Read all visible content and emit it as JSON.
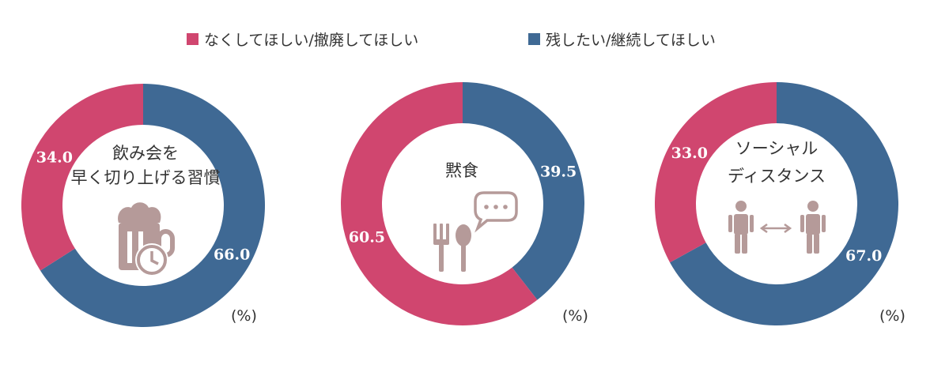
{
  "chart_data": {
    "type": "pie",
    "series_names": [
      "なくしてほしい/撤廃してほしい",
      "残したい/継続してほしい"
    ],
    "colors": [
      "#d0466f",
      "#3f6994"
    ],
    "unit": "(%)",
    "charts": [
      {
        "label_lines": [
          "飲み会を",
          "早く切り上げる習慣"
        ],
        "icon": "beer-mug-clock-icon",
        "values": [
          34.0,
          66.0
        ],
        "value_labels": [
          "34.0",
          "66.0"
        ]
      },
      {
        "label_lines": [
          "黙食"
        ],
        "icon": "cutlery-speech-bubble-icon",
        "values": [
          60.5,
          39.5
        ],
        "value_labels": [
          "60.5",
          "39.5"
        ]
      },
      {
        "label_lines": [
          "ソーシャル",
          "ディスタンス"
        ],
        "icon": "social-distance-icon",
        "values": [
          33.0,
          67.0
        ],
        "value_labels": [
          "33.0",
          "67.0"
        ]
      }
    ]
  }
}
